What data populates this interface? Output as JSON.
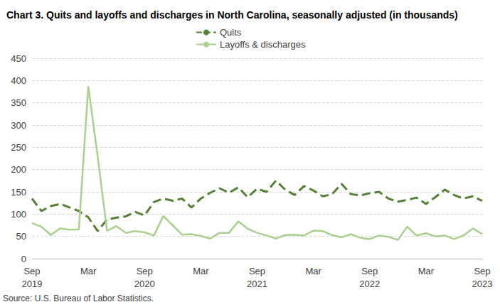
{
  "chart_data": {
    "type": "line",
    "title": "Chart 3. Quits and layoffs and discharges in North Carolina, seasonally adjusted (in thousands)",
    "source": "Source: U.S. Bureau of Labor Statistics.",
    "categories": [
      "Sep\n2019",
      null,
      null,
      null,
      null,
      null,
      "Mar",
      null,
      null,
      null,
      null,
      null,
      "Sep\n2020",
      null,
      null,
      null,
      null,
      null,
      "Mar",
      null,
      null,
      null,
      null,
      null,
      "Sep\n2021",
      null,
      null,
      null,
      null,
      null,
      "Mar",
      null,
      null,
      null,
      null,
      null,
      "Sep\n2022",
      null,
      null,
      null,
      null,
      null,
      "Mar",
      null,
      null,
      null,
      null,
      null,
      "Sep\n2023"
    ],
    "series": [
      {
        "name": "Quits",
        "color": "#548235",
        "line_style": "dashed",
        "marker": "none",
        "values": [
          135,
          107,
          118,
          123,
          115,
          107,
          93,
          62,
          88,
          92,
          95,
          105,
          97,
          127,
          135,
          130,
          135,
          115,
          135,
          148,
          158,
          148,
          160,
          138,
          157,
          150,
          175,
          155,
          143,
          163,
          153,
          140,
          145,
          168,
          145,
          142,
          147,
          150,
          135,
          128,
          132,
          137,
          123,
          138,
          155,
          143,
          135,
          140,
          130
        ]
      },
      {
        "name": "Layoffs & discharges",
        "color": "#a9d18e",
        "line_style": "solid",
        "marker": "none",
        "values": [
          80,
          72,
          53,
          68,
          65,
          66,
          387,
          230,
          63,
          73,
          58,
          62,
          59,
          52,
          96,
          75,
          54,
          55,
          51,
          45,
          58,
          58,
          84,
          67,
          58,
          52,
          45,
          53,
          54,
          52,
          63,
          62,
          53,
          48,
          55,
          47,
          44,
          52,
          49,
          42,
          72,
          52,
          57,
          50,
          52,
          44,
          52,
          68,
          55
        ]
      }
    ],
    "ylim": [
      0,
      450
    ],
    "yticks": [
      0,
      50,
      100,
      150,
      200,
      250,
      300,
      350,
      400,
      450
    ],
    "grid": true,
    "legend": "top"
  }
}
